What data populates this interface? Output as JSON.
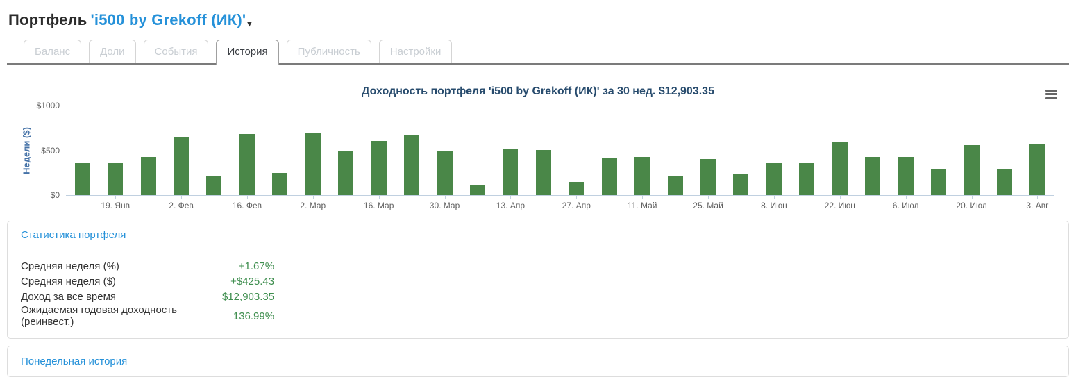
{
  "header": {
    "title_prefix": "Портфель",
    "portfolio_link": "'i500 by Grekoff (ИК)'",
    "caret_glyph": "▾"
  },
  "tabs": [
    {
      "label": "Баланс",
      "active": false
    },
    {
      "label": "Доли",
      "active": false
    },
    {
      "label": "События",
      "active": false
    },
    {
      "label": "История",
      "active": true
    },
    {
      "label": "Публичность",
      "active": false
    },
    {
      "label": "Настройки",
      "active": false
    }
  ],
  "chart": {
    "title": "Доходность портфеля 'i500 by Grekoff (ИК)' за 30 нед. $12,903.35",
    "menu_icon": "hamburger-icon"
  },
  "chart_data": {
    "type": "bar",
    "title": "Доходность портфеля 'i500 by Grekoff (ИК)' за 30 нед. $12,903.35",
    "ylabel": "Недели ($)",
    "xlabel": "",
    "ylim": [
      0,
      1000
    ],
    "y_ticks": [
      "$0",
      "$500",
      "$1000"
    ],
    "grid": "dotted horizontal gridlines at $500 and $1000, solid baseline at $0",
    "bar_color": "#4a8748",
    "n_bars": 30,
    "x_labels_shown": [
      "19. Янв",
      "2. Фев",
      "16. Фев",
      "2. Мар",
      "16. Мар",
      "30. Мар",
      "13. Апр",
      "27. Апр",
      "11. Май",
      "25. Май",
      "8. Июн",
      "22. Июн",
      "6. Июл",
      "20. Июл",
      "3. Авг"
    ],
    "label_placement": "under every 2nd bar",
    "values": [
      355,
      355,
      425,
      650,
      215,
      685,
      250,
      700,
      495,
      605,
      665,
      500,
      115,
      520,
      505,
      150,
      410,
      425,
      215,
      405,
      235,
      360,
      360,
      600,
      430,
      430,
      295,
      555,
      290,
      565
    ]
  },
  "stats": {
    "header": "Статистика портфеля",
    "rows": [
      {
        "label": "Средняя неделя (%)",
        "value": "+1.67%"
      },
      {
        "label": "Средняя неделя ($)",
        "value": "+$425.43"
      },
      {
        "label": "Доход за все время",
        "value": "$12,903.35"
      },
      {
        "label": "Ожидаемая годовая доходность (реинвест.)",
        "value": "136.99%"
      }
    ]
  },
  "footer_panel": {
    "link": "Понедельная история"
  },
  "colors": {
    "link_blue": "#2591d9",
    "chart_title_navy": "#274b6d",
    "axis_title_blue": "#4572a7",
    "bar_green": "#4a8748",
    "stat_value_green": "#3e8e4e",
    "tab_inactive_text": "#c9ced3",
    "tab_active_text": "#3b3f44"
  }
}
